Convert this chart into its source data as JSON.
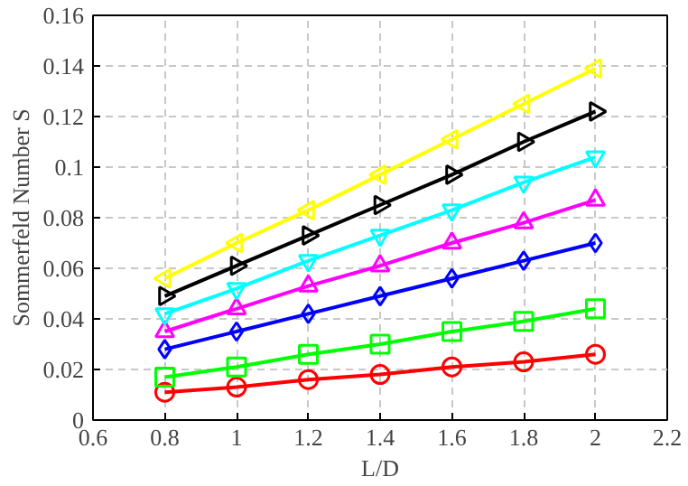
{
  "chart_data": {
    "type": "line",
    "xlabel": "L/D",
    "ylabel": "Sommerfeld Number S",
    "x": [
      0.8,
      1.0,
      1.2,
      1.4,
      1.6,
      1.8,
      2.0
    ],
    "xlim": [
      0.6,
      2.2
    ],
    "xticks": [
      0.6,
      0.8,
      1,
      1.2,
      1.4,
      1.6,
      1.8,
      2,
      2.2
    ],
    "ylim": [
      0,
      0.16
    ],
    "yticks": [
      0,
      0.02,
      0.04,
      0.06,
      0.08,
      0.1,
      0.12,
      0.14,
      0.16
    ],
    "grid": true,
    "line_style": "solid",
    "series": [
      {
        "color": "#ff0000",
        "marker": "circle",
        "values": [
          0.011,
          0.013,
          0.016,
          0.018,
          0.021,
          0.023,
          0.026
        ]
      },
      {
        "color": "#00ff00",
        "marker": "square",
        "values": [
          0.017,
          0.021,
          0.026,
          0.03,
          0.035,
          0.039,
          0.044
        ]
      },
      {
        "color": "#0000ff",
        "marker": "diamond",
        "values": [
          0.028,
          0.035,
          0.042,
          0.049,
          0.056,
          0.063,
          0.07
        ]
      },
      {
        "color": "#ff00ff",
        "marker": "triangle",
        "values": [
          0.035,
          0.044,
          0.053,
          0.061,
          0.07,
          0.078,
          0.087
        ]
      },
      {
        "color": "#00ffff",
        "marker": "triangle",
        "values": [
          0.042,
          0.052,
          0.063,
          0.073,
          0.083,
          0.094,
          0.104
        ]
      },
      {
        "color": "#000000",
        "marker": "triangle",
        "values": [
          0.049,
          0.061,
          0.073,
          0.085,
          0.097,
          0.11,
          0.122
        ]
      },
      {
        "color": "#ffff00",
        "marker": "triangle",
        "values": [
          0.056,
          0.07,
          0.083,
          0.097,
          0.111,
          0.125,
          0.139
        ]
      }
    ]
  }
}
